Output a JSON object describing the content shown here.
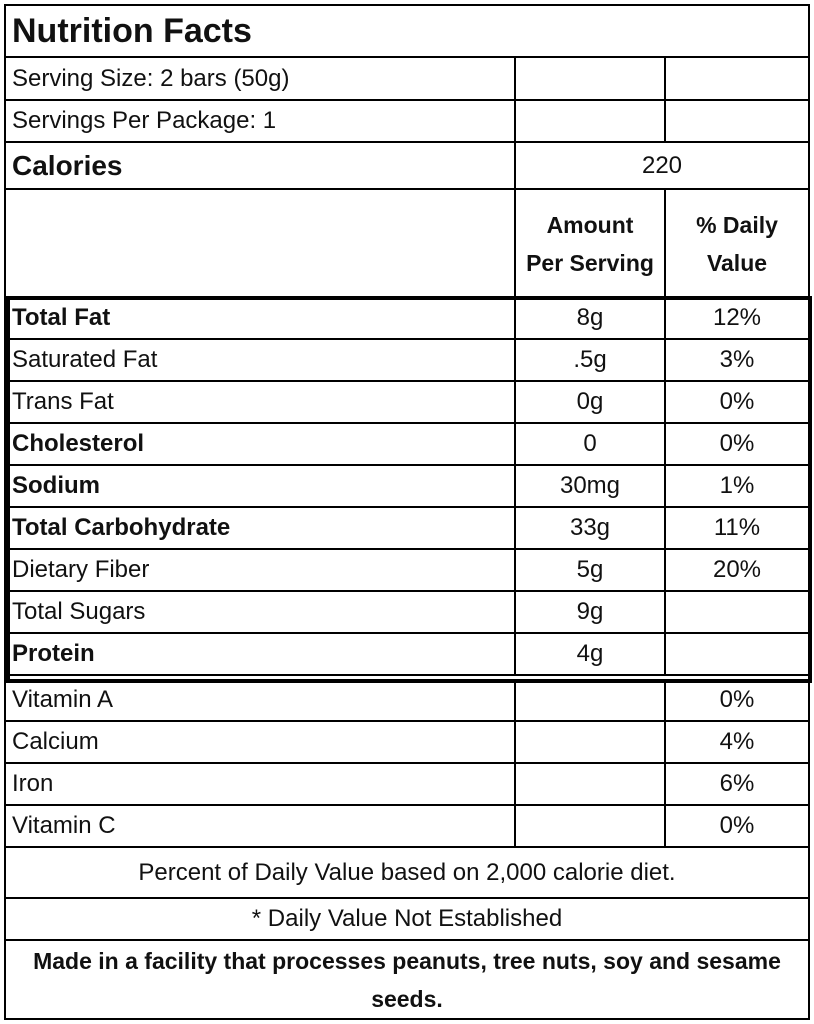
{
  "title": "Nutrition Facts",
  "serving_size": "Serving Size: 2 bars (50g)",
  "servings_per_package": "Servings Per Package: 1",
  "calories": {
    "label": "Calories",
    "value": "220"
  },
  "column_headers": {
    "amount_line1": "Amount",
    "amount_line2": "Per Serving",
    "dv_line1": "% Daily",
    "dv_line2": "Value"
  },
  "nutrients": [
    {
      "name": "Total Fat",
      "amount": "8g",
      "dv": "12%",
      "bold": true
    },
    {
      "name": "Saturated Fat",
      "amount": ".5g",
      "dv": "3%",
      "bold": false
    },
    {
      "name": "Trans Fat",
      "amount": "0g",
      "dv": "0%",
      "bold": false
    },
    {
      "name": "Cholesterol",
      "amount": "0",
      "dv": "0%",
      "bold": true
    },
    {
      "name": "Sodium",
      "amount": "30mg",
      "dv": "1%",
      "bold": true
    },
    {
      "name": "Total Carbohydrate",
      "amount": "33g",
      "dv": "11%",
      "bold": true
    },
    {
      "name": "Dietary Fiber",
      "amount": "5g",
      "dv": "20%",
      "bold": false
    },
    {
      "name": "Total Sugars",
      "amount": "9g",
      "dv": "",
      "bold": false
    },
    {
      "name": "Protein",
      "amount": "4g",
      "dv": "",
      "bold": true
    }
  ],
  "vitamins": [
    {
      "name": "Vitamin A",
      "amount": "",
      "dv": "0%"
    },
    {
      "name": "Calcium",
      "amount": "",
      "dv": "4%"
    },
    {
      "name": "Iron",
      "amount": "",
      "dv": "6%"
    },
    {
      "name": "Vitamin C",
      "amount": "",
      "dv": "0%"
    }
  ],
  "footnote_dv": "Percent of Daily Value based on 2,000 calorie diet.",
  "footnote_na": "* Daily Value Not Established",
  "allergen_notice": "Made in a facility that processes peanuts, tree nuts, soy and sesame seeds."
}
